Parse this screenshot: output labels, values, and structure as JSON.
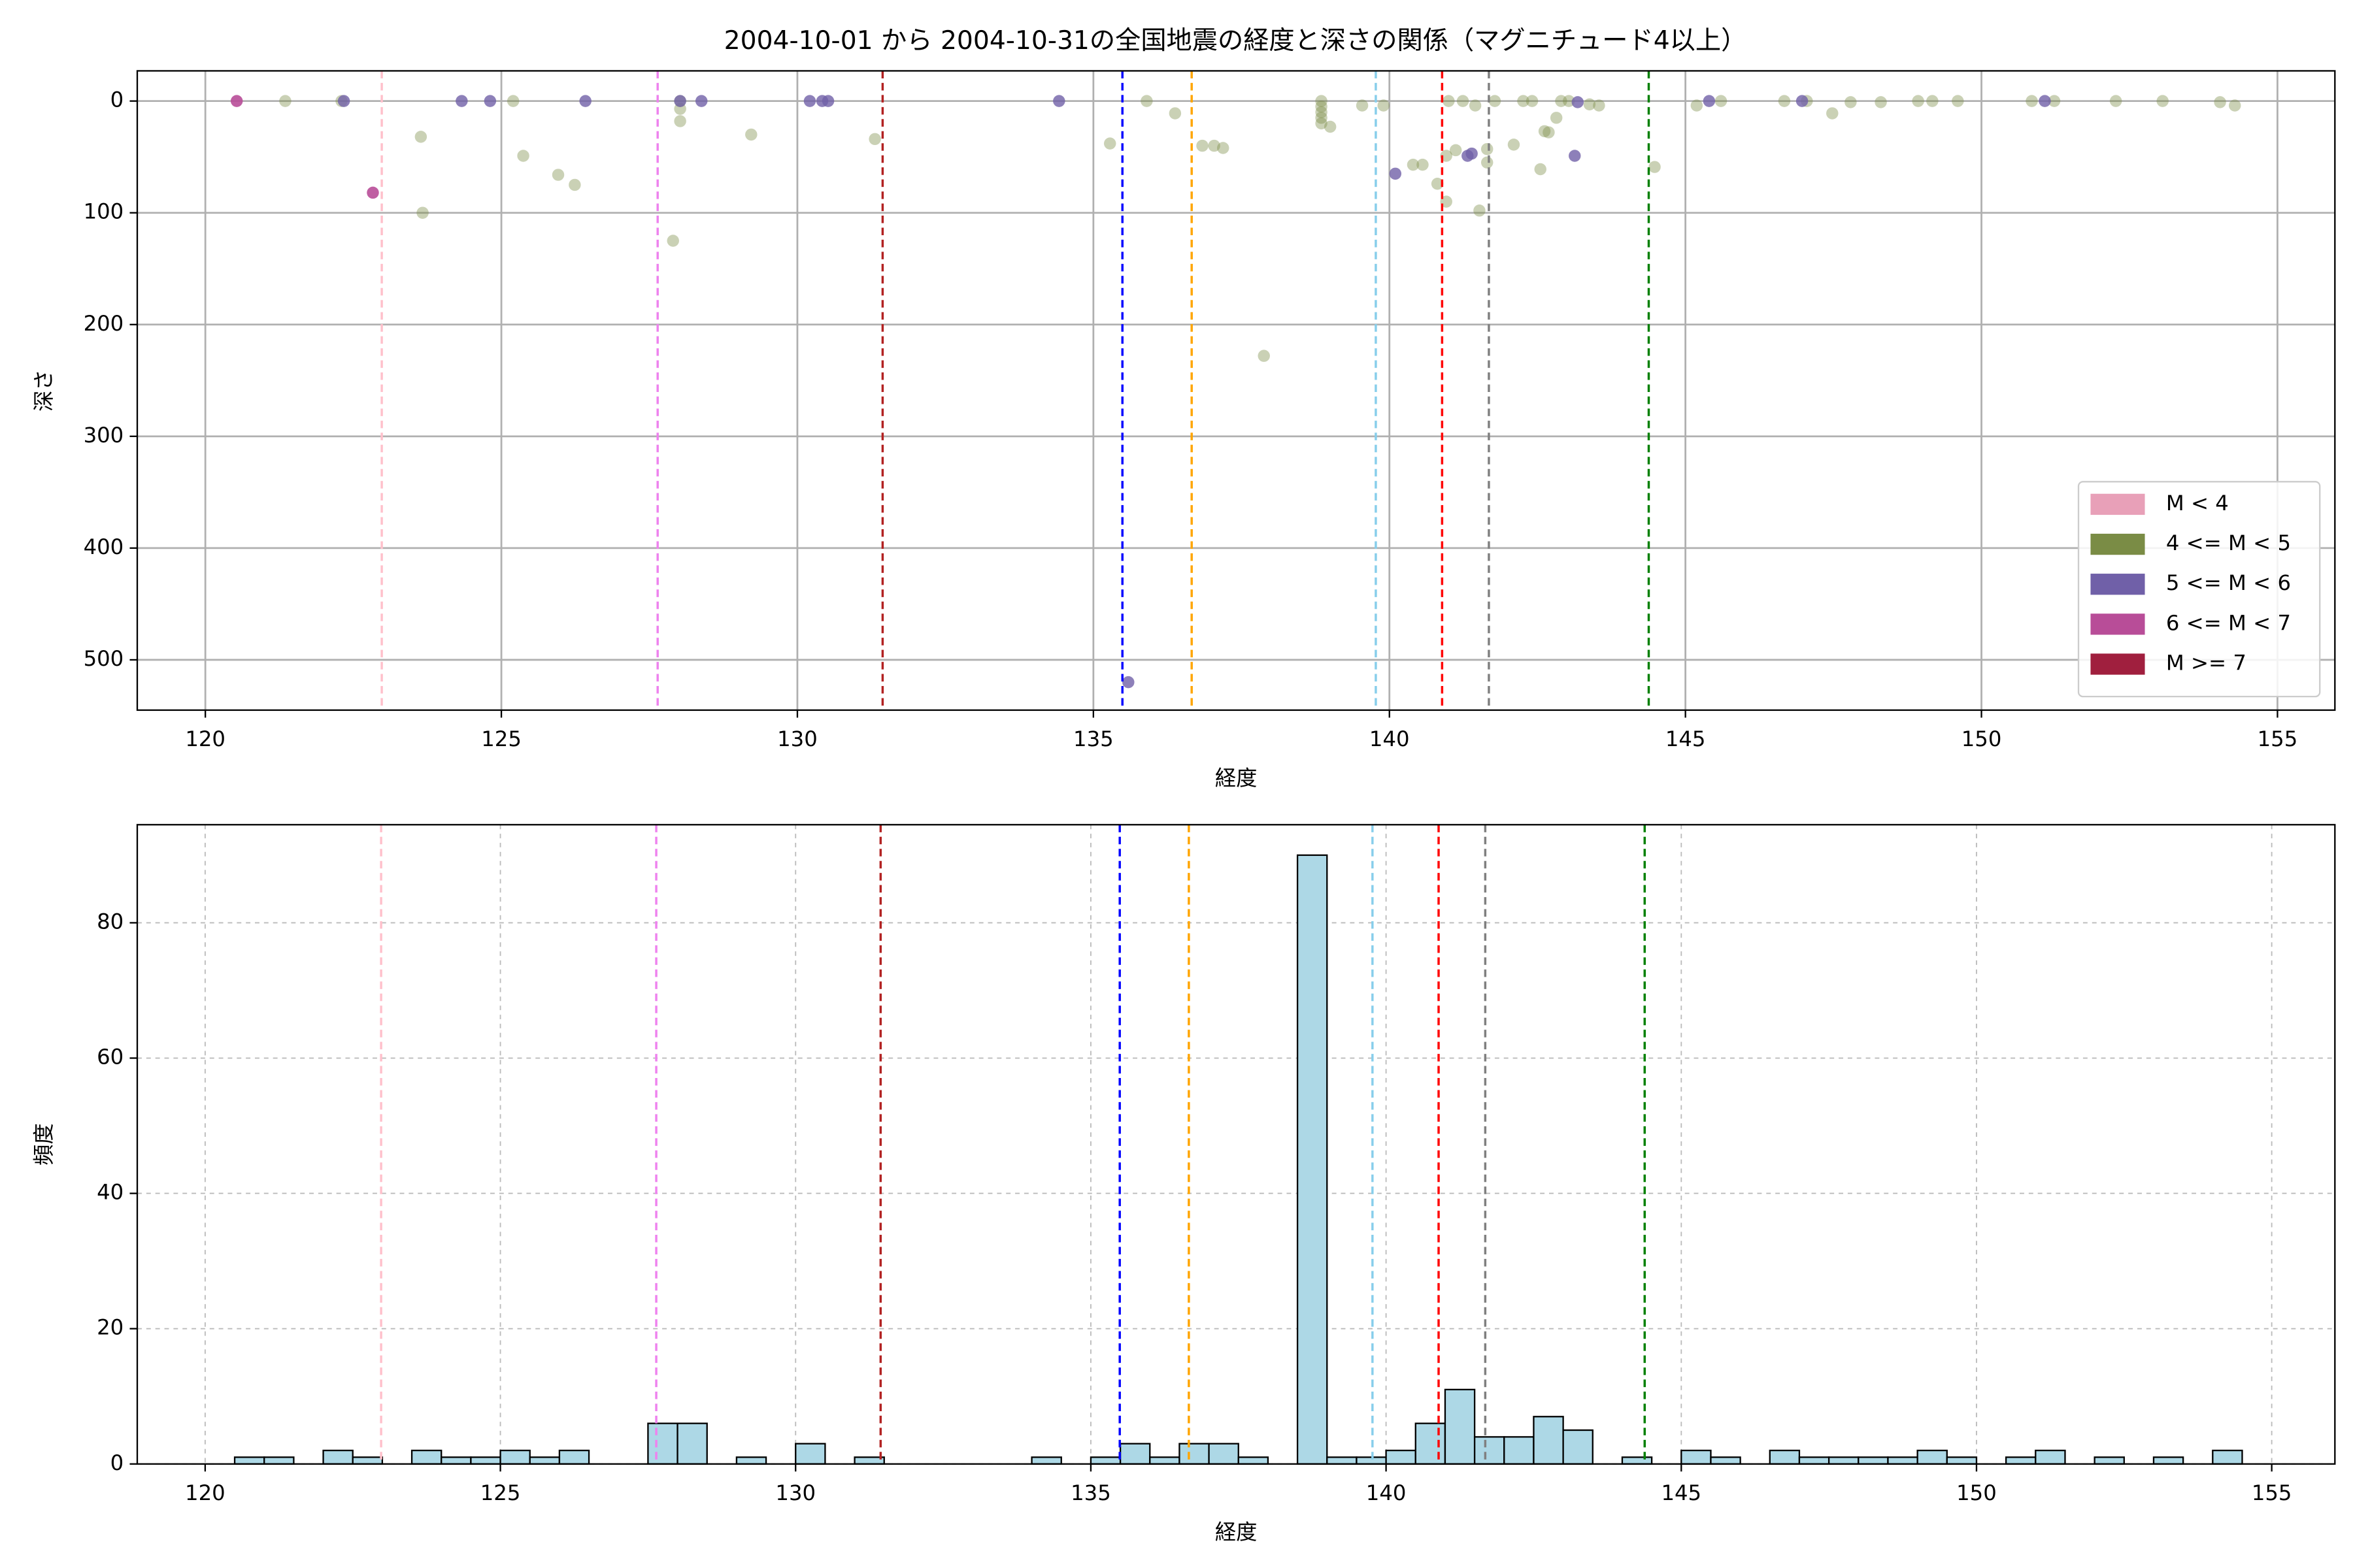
{
  "chart_data": [
    {
      "type": "scatter",
      "title": "2004-10-01 から 2004-10-31の全国地震の経度と深さの関係（マグニチュード4以上）",
      "xlabel": "経度",
      "ylabel": "深さ",
      "xlim": [
        118.85,
        155.97
      ],
      "ylim": [
        -27,
        545
      ],
      "y_inverted": true,
      "xticks": [
        120,
        125,
        130,
        135,
        140,
        145,
        150,
        155
      ],
      "yticks": [
        0,
        100,
        200,
        300,
        400,
        500
      ],
      "grid": true,
      "grid_style": "solid",
      "legend": "lower right",
      "vlines": [
        {
          "x": 122.98,
          "color": "pink"
        },
        {
          "x": 127.64,
          "color": "violet"
        },
        {
          "x": 131.44,
          "color": "#b22222"
        },
        {
          "x": 135.49,
          "color": "blue"
        },
        {
          "x": 136.66,
          "color": "orange"
        },
        {
          "x": 139.77,
          "color": "skyblue"
        },
        {
          "x": 140.89,
          "color": "red"
        },
        {
          "x": 141.68,
          "color": "gray"
        },
        {
          "x": 144.38,
          "color": "green"
        }
      ],
      "series": [
        {
          "name": "M < 4",
          "color": "#e8a0b8",
          "opacity": 0.6,
          "x": [],
          "values": []
        },
        {
          "name": "4 <= M < 5",
          "color": "#7a8c45",
          "opacity": 0.4,
          "x": [
            121.35,
            122.3,
            123.64,
            123.67,
            125.2,
            125.37,
            125.96,
            126.24,
            128.02,
            128.02,
            128.02,
            127.9,
            129.22,
            131.31,
            135.28,
            135.9,
            136.38,
            136.84,
            137.04,
            137.19,
            137.88,
            138.85,
            138.85,
            138.85,
            138.85,
            138.85,
            139.0,
            139.54,
            139.9,
            140.4,
            140.56,
            140.81,
            140.96,
            140.96,
            141.0,
            141.12,
            141.24,
            141.45,
            141.52,
            141.65,
            141.65,
            141.78,
            142.1,
            142.26,
            142.41,
            142.55,
            142.62,
            142.69,
            142.82,
            142.9,
            143.03,
            143.38,
            143.54,
            144.48,
            145.19,
            145.6,
            146.67,
            147.05,
            147.48,
            147.79,
            148.3,
            148.93,
            149.17,
            149.6,
            150.85,
            151.23,
            152.27,
            153.06,
            154.03,
            154.28
          ],
          "values": [
            0,
            0,
            32,
            100,
            0,
            49,
            66,
            75,
            0,
            7,
            18,
            125,
            30,
            34,
            38,
            0,
            11,
            40,
            40,
            42,
            228,
            0,
            5,
            10,
            15,
            20,
            23,
            4,
            4,
            57,
            57,
            74,
            49,
            90,
            0,
            44,
            0,
            4,
            98,
            43,
            55,
            0,
            39,
            0,
            0,
            61,
            27,
            28,
            15,
            0,
            0,
            3,
            4,
            59,
            4,
            0,
            0,
            0,
            11,
            1,
            1,
            0,
            0,
            0,
            0,
            0,
            0,
            0,
            1,
            4
          ]
        },
        {
          "name": "5 <= M < 6",
          "color": "#7060a8",
          "opacity": 0.8,
          "x": [
            122.34,
            124.33,
            124.81,
            126.42,
            128.02,
            128.38,
            130.21,
            130.42,
            130.52,
            134.42,
            135.59,
            140.1,
            141.32,
            141.39,
            143.13,
            143.18,
            145.4,
            146.97,
            151.07
          ],
          "values": [
            0,
            0,
            0,
            0,
            0,
            0,
            0,
            0,
            0,
            0,
            520,
            65,
            49,
            47,
            49,
            1,
            0,
            0,
            0
          ]
        },
        {
          "name": "6 <= M < 7",
          "color": "#b84d98",
          "opacity": 0.9,
          "x": [
            120.53,
            122.83
          ],
          "values": [
            0,
            82
          ]
        },
        {
          "name": "M >= 7",
          "color": "#a01f3e",
          "opacity": 0.9,
          "x": [],
          "values": []
        }
      ]
    },
    {
      "type": "histogram",
      "xlabel": "経度",
      "ylabel": "頻度",
      "xlim": [
        118.85,
        156.07
      ],
      "ylim": [
        0,
        94.5
      ],
      "xticks": [
        120,
        125,
        130,
        135,
        140,
        145,
        150,
        155
      ],
      "yticks": [
        0,
        20,
        40,
        60,
        80
      ],
      "grid": true,
      "grid_style": "dashed",
      "color": "#add8e6",
      "vlines": [
        {
          "x": 122.98,
          "color": "pink"
        },
        {
          "x": 127.64,
          "color": "violet"
        },
        {
          "x": 131.44,
          "color": "#b22222"
        },
        {
          "x": 135.49,
          "color": "blue"
        },
        {
          "x": 136.66,
          "color": "orange"
        },
        {
          "x": 139.77,
          "color": "skyblue"
        },
        {
          "x": 140.89,
          "color": "red"
        },
        {
          "x": 141.68,
          "color": "gray"
        },
        {
          "x": 144.38,
          "color": "green"
        }
      ],
      "bins": [
        120.5,
        121,
        121.5,
        122,
        122.5,
        123,
        123.5,
        124,
        124.5,
        125,
        125.5,
        126,
        126.5,
        127,
        127.5,
        128,
        128.5,
        129,
        129.5,
        130,
        130.5,
        131,
        131.5,
        132,
        132.5,
        133,
        133.5,
        134,
        134.5,
        135,
        135.5,
        136,
        136.5,
        137,
        137.5,
        138,
        138.5,
        139,
        139.5,
        140,
        140.5,
        141,
        141.5,
        142,
        142.5,
        143,
        143.5,
        144,
        144.5,
        145,
        145.5,
        146,
        146.5,
        147,
        147.5,
        148,
        148.5,
        149,
        149.5,
        150,
        150.5,
        151,
        151.5,
        152,
        152.5,
        153,
        153.5,
        154,
        154.5
      ],
      "counts": [
        1,
        1,
        0,
        2,
        1,
        0,
        2,
        1,
        1,
        2,
        1,
        2,
        0,
        0,
        6,
        6,
        0,
        1,
        0,
        3,
        0,
        1,
        0,
        0,
        0,
        0,
        0,
        1,
        0,
        1,
        3,
        1,
        3,
        3,
        1,
        0,
        90,
        1,
        1,
        2,
        6,
        11,
        4,
        4,
        7,
        5,
        0,
        1,
        0,
        2,
        1,
        0,
        2,
        1,
        1,
        1,
        1,
        2,
        1,
        0,
        1,
        2,
        0,
        1,
        0,
        1,
        0,
        2
      ]
    }
  ]
}
